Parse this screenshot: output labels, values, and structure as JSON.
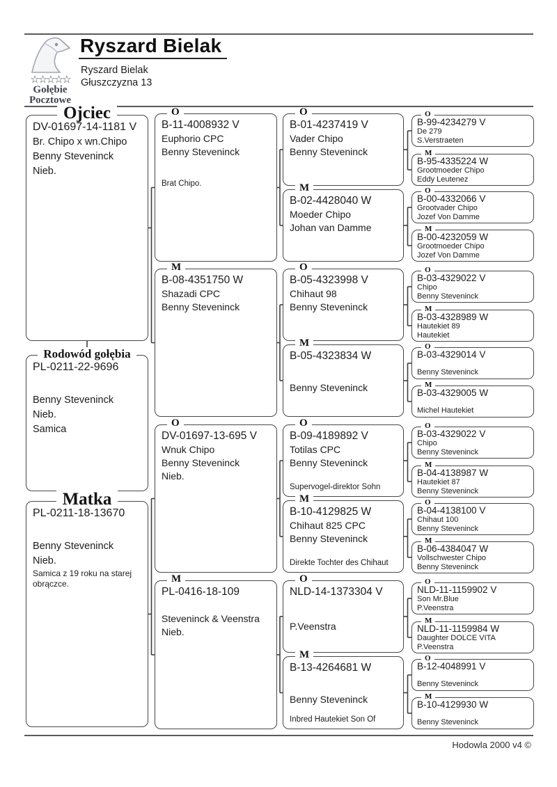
{
  "header": {
    "title": "Ryszard Bielak",
    "owner": {
      "name": "Ryszard Bielak",
      "address": "Głuszczyzna 13"
    },
    "logo": {
      "icon": "pigeon-head-icon",
      "stars": "☆☆☆☆☆",
      "line1": "Gołębie",
      "line2": "Pocztowe"
    }
  },
  "footer": {
    "credit": "Hodowla 2000 v4 ©"
  },
  "pedigree": {
    "gen1": [
      {
        "label": "Ojciec",
        "ring": "DV-01697-14-1181 V",
        "name": "Br. Chipo x wn.Chipo",
        "fancier": "Benny Steveninck",
        "color": "Nieb."
      },
      {
        "label": "Rodowód gołębia",
        "ring": "PL-0211-22-9696",
        "fancier": "Benny Steveninck",
        "color": "Nieb.",
        "sex": "Samica"
      },
      {
        "label": "Matka",
        "ring": "PL-0211-18-13670",
        "fancier": "Benny Steveninck",
        "color": "Nieb.",
        "note": "Samica z 19 roku na starej obrączce."
      }
    ],
    "gen2": [
      {
        "sex": "O",
        "ring": "B-11-4008932 V",
        "name": "Euphorio CPC",
        "fancier": "Benny Steveninck",
        "note": "Brat Chipo."
      },
      {
        "sex": "M",
        "ring": "B-08-4351750 W",
        "name": "Shazadi CPC",
        "fancier": "Benny Steveninck"
      },
      {
        "sex": "O",
        "ring": "DV-01697-13-695 V",
        "name": "Wnuk Chipo",
        "fancier": "Benny Steveninck",
        "color": "Nieb."
      },
      {
        "sex": "M",
        "ring": "PL-0416-18-109",
        "fancier": "Steveninck & Veenstra",
        "color": "Nieb."
      }
    ],
    "gen3": [
      {
        "sex": "O",
        "ring": "B-01-4237419 V",
        "name": "Vader Chipo",
        "fancier": "Benny Steveninck"
      },
      {
        "sex": "M",
        "ring": "B-02-4428040 W",
        "name": "Moeder Chipo",
        "fancier": "Johan van Damme"
      },
      {
        "sex": "O",
        "ring": "B-05-4323998 V",
        "name": "Chihaut 98",
        "fancier": "Benny Steveninck"
      },
      {
        "sex": "M",
        "ring": "B-05-4323834 W",
        "fancier": "Benny Steveninck"
      },
      {
        "sex": "O",
        "ring": "B-09-4189892 V",
        "name": "Totilas CPC",
        "fancier": "Benny Steveninck",
        "note": "Supervogel-direktor Sohn"
      },
      {
        "sex": "M",
        "ring": "B-10-4129825 W",
        "name": "Chihaut 825 CPC",
        "fancier": "Benny Steveninck",
        "note": "Direkte Tochter des Chihaut"
      },
      {
        "sex": "O",
        "ring": "NLD-14-1373304 V",
        "fancier": "P.Veenstra"
      },
      {
        "sex": "M",
        "ring": "B-13-4264681 W",
        "fancier": "Benny Steveninck",
        "note": "Inbred Hautekiet Son Of"
      }
    ],
    "gen4": [
      {
        "sex": "O",
        "ring": "B-99-4234279 V",
        "name": "De 279",
        "fancier": "S.Verstraeten"
      },
      {
        "sex": "M",
        "ring": "B-95-4335224 W",
        "name": "Grootmoeder Chipo",
        "fancier": "Eddy Leutenez"
      },
      {
        "sex": "O",
        "ring": "B-00-4332066 V",
        "name": "Grootvader Chipo",
        "fancier": "Jozef Von Damme"
      },
      {
        "sex": "M",
        "ring": "B-00-4232059 W",
        "name": "Grootmoeder Chipo",
        "fancier": "Jozef Von Damme"
      },
      {
        "sex": "O",
        "ring": "B-03-4329022 V",
        "name": "Chipo",
        "fancier": "Benny Steveninck"
      },
      {
        "sex": "M",
        "ring": "B-03-4328989 W",
        "name": "Hautekiet 89",
        "fancier": "Hautekiet"
      },
      {
        "sex": "O",
        "ring": "B-03-4329014 V",
        "fancier": "Benny Steveninck"
      },
      {
        "sex": "M",
        "ring": "B-03-4329005 W",
        "fancier": "Michel Hautekiet"
      },
      {
        "sex": "O",
        "ring": "B-03-4329022 V",
        "name": "Chipo",
        "fancier": "Benny Steveninck"
      },
      {
        "sex": "M",
        "ring": "B-04-4138987 W",
        "name": "Hautekiet 87",
        "fancier": "Benny Steveninck"
      },
      {
        "sex": "O",
        "ring": "B-04-4138100 V",
        "name": "Chihaut 100",
        "fancier": "Benny Steveninck"
      },
      {
        "sex": "M",
        "ring": "B-06-4384047 W",
        "name": "Vollschwester Chipo",
        "fancier": "Benny Steveninck"
      },
      {
        "sex": "O",
        "ring": "NLD-11-1159902 V",
        "name": "Son Mr.Blue",
        "fancier": "P.Veenstra"
      },
      {
        "sex": "M",
        "ring": "NLD-11-1159984 W",
        "name": "Daughter DOLCE VITA",
        "fancier": "P.Veenstra"
      },
      {
        "sex": "O",
        "ring": "B-12-4048991 V",
        "fancier": "Benny Steveninck"
      },
      {
        "sex": "M",
        "ring": "B-10-4129930 W",
        "fancier": "Benny Steveninck"
      }
    ]
  }
}
